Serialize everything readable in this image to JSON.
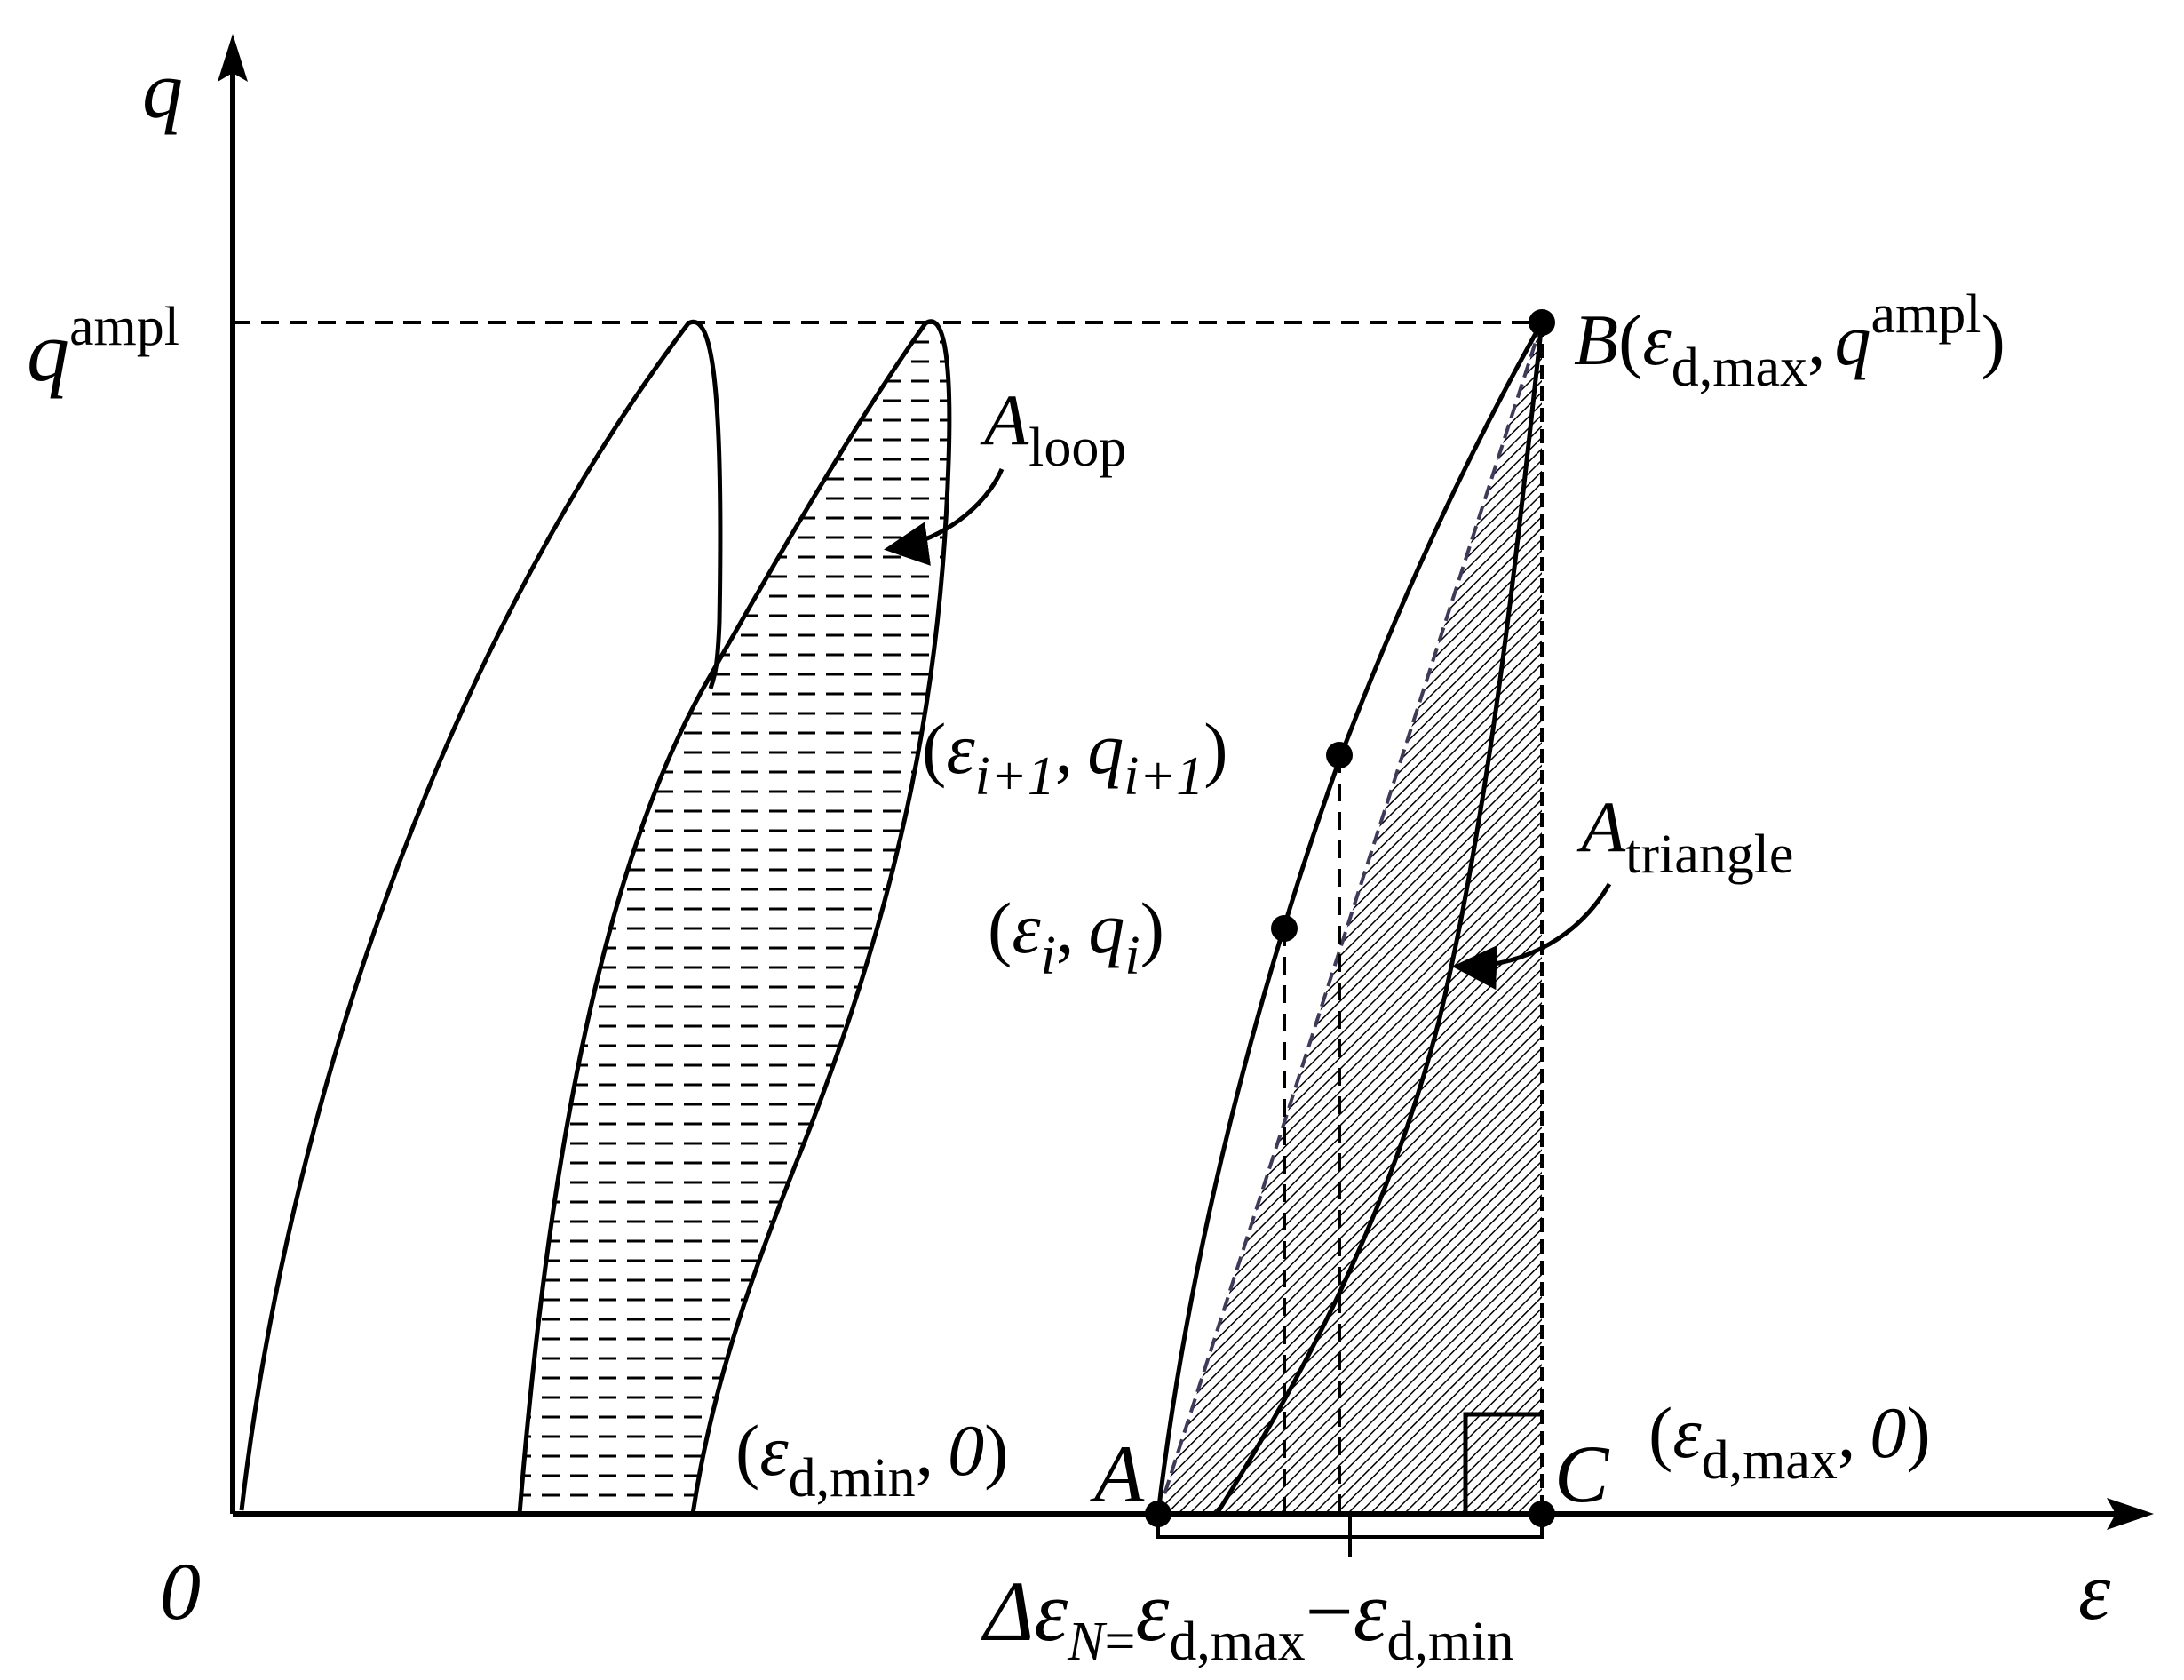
{
  "axes": {
    "y_label": "q",
    "x_label": "ε",
    "origin_label": "0"
  },
  "q_ampl": {
    "base": "q",
    "sup": "ampl"
  },
  "point_B": {
    "letter": "B",
    "open": "(",
    "eps": "ε",
    "sub": "d,max",
    "comma": ",",
    "q": "q",
    "sup": "ampl",
    "close": ")"
  },
  "point_A": {
    "letter": "A",
    "open": "(",
    "eps": "ε",
    "sub": "d,min",
    "comma": ",",
    "zero": "0",
    "close": ")"
  },
  "point_C": {
    "letter": "C",
    "open": "(",
    "eps": "ε",
    "sub": "d,max",
    "comma": ",",
    "zero": "0",
    "close": ")"
  },
  "point_i1": {
    "open": "(",
    "eps": "ε",
    "sub": "i+1",
    "comma": ",",
    "q": "q",
    "qsub": "i+1",
    "close": ")"
  },
  "point_i": {
    "open": "(",
    "eps": "ε",
    "sub": "i",
    "comma": ",",
    "q": "q",
    "qsub": "i",
    "close": ")"
  },
  "a_loop": {
    "base": "A",
    "sub": "loop"
  },
  "a_triangle": {
    "base": "A",
    "sub": "triangle"
  },
  "delta": {
    "prefix": "Δε",
    "sub_n": "N",
    "equals": "=",
    "eps1": "ε",
    "sub1": "d,max",
    "minus": "−",
    "eps2": "ε",
    "sub2": "d,min"
  },
  "colors": {
    "ink": "#000000",
    "background": "#ffffff",
    "hatch_dash": "#6e7b8b"
  }
}
